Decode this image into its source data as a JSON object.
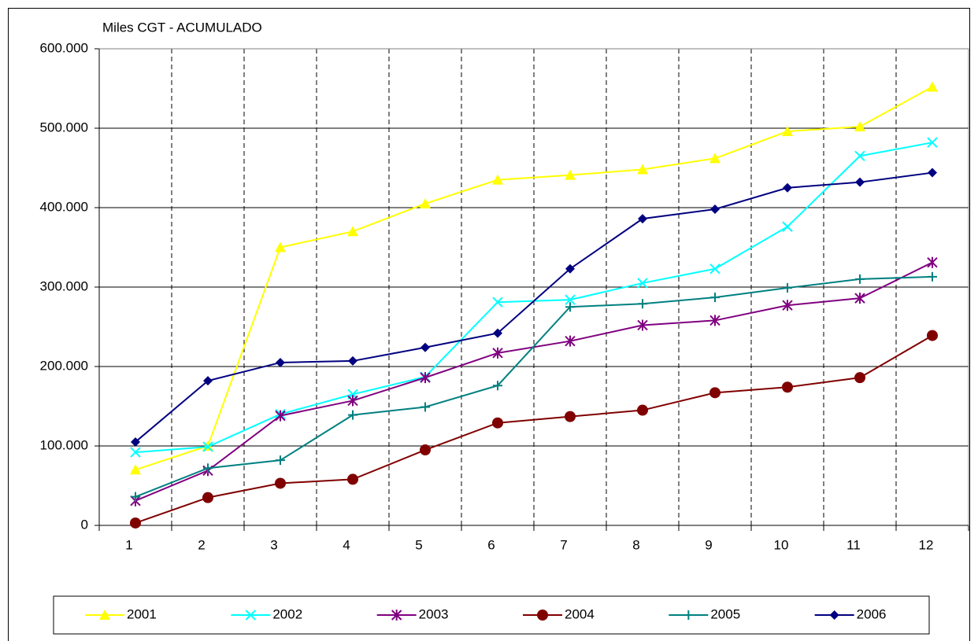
{
  "chart_data": {
    "type": "line",
    "y_label": "Miles CGT - ACUMULADO",
    "categories": [
      "1",
      "2",
      "3",
      "4",
      "5",
      "6",
      "7",
      "8",
      "9",
      "10",
      "11",
      "12"
    ],
    "ylim": [
      0,
      600000
    ],
    "yticks": [
      0,
      {
        "value": 100000,
        "label": "100.000"
      },
      {
        "value": 200000,
        "label": "200.000"
      },
      {
        "value": 300000,
        "label": "300.000"
      },
      {
        "value": 400000,
        "label": "400.000"
      },
      {
        "value": 500000,
        "label": "500.000"
      },
      {
        "value": 600000,
        "label": "600.000"
      }
    ],
    "grid": true,
    "legend": "bottom",
    "series": [
      {
        "name": "2001",
        "color": "#ffff00",
        "marker": "triangle",
        "values": [
          70000,
          100000,
          350000,
          370000,
          405000,
          435000,
          441000,
          448000,
          462000,
          496000,
          502000,
          552000
        ]
      },
      {
        "name": "2002",
        "color": "#00ffff",
        "marker": "x",
        "values": [
          92000,
          99000,
          140000,
          165000,
          187000,
          281000,
          284000,
          305000,
          323000,
          376000,
          465000,
          482000
        ]
      },
      {
        "name": "2003",
        "color": "#800080",
        "marker": "star",
        "values": [
          31000,
          69000,
          138000,
          157000,
          186000,
          217000,
          232000,
          252000,
          258000,
          277000,
          286000,
          331000
        ]
      },
      {
        "name": "2004",
        "color": "#800000",
        "marker": "circle",
        "values": [
          3000,
          35000,
          53000,
          58000,
          95000,
          129000,
          137000,
          145000,
          167000,
          174000,
          186000,
          239000
        ]
      },
      {
        "name": "2005",
        "color": "#008080",
        "marker": "plus",
        "values": [
          36000,
          72000,
          82000,
          139000,
          149000,
          176000,
          275000,
          279000,
          287000,
          299000,
          310000,
          313000
        ]
      },
      {
        "name": "2006",
        "color": "#000080",
        "marker": "diamond",
        "values": [
          105000,
          182000,
          205000,
          207000,
          224000,
          242000,
          323000,
          386000,
          398000,
          425000,
          432000,
          444000
        ]
      }
    ]
  }
}
